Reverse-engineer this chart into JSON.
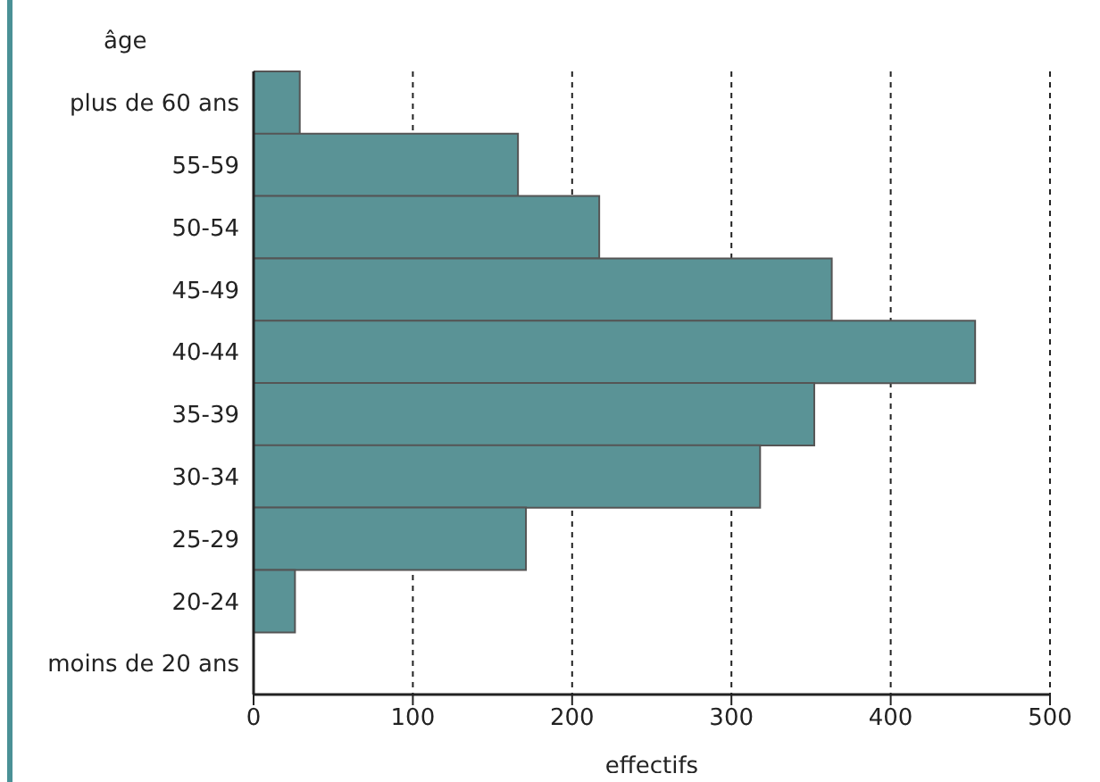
{
  "chart_data": {
    "type": "bar",
    "orientation": "horizontal",
    "ylabel": "âge",
    "xlabel": "effectifs",
    "categories": [
      "plus de 60 ans",
      "55-59",
      "50-54",
      "45-49",
      "40-44",
      "35-39",
      "30-34",
      "25-29",
      "20-24",
      "moins de 20 ans"
    ],
    "values": [
      29,
      166,
      217,
      363,
      453,
      352,
      318,
      171,
      26,
      0
    ],
    "color": "#5a9396",
    "xlim": [
      0,
      500
    ],
    "xticks": [
      0,
      100,
      200,
      300,
      400,
      500
    ],
    "grid": "x",
    "line_style": "dashed"
  }
}
